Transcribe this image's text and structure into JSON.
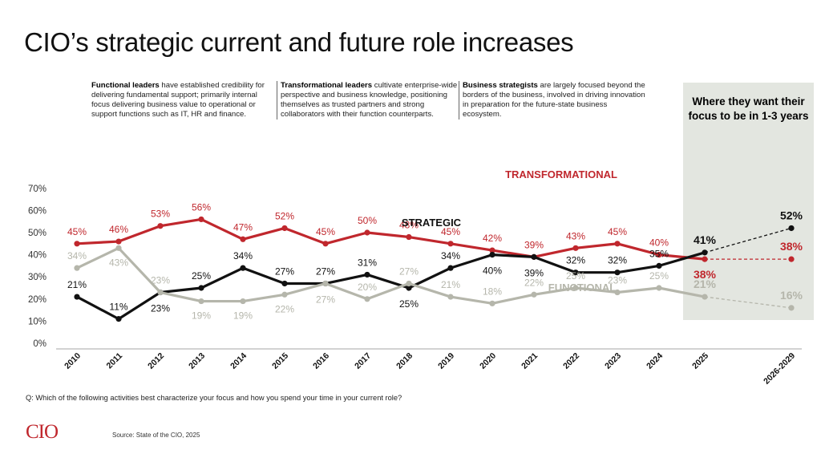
{
  "title": "CIO’s strategic current and future role increases",
  "descriptions": [
    {
      "bold": "Functional leaders",
      "text": " have established credibility for delivering fundamental support; primarily internal focus delivering business value to operational or support functions such as IT, HR and finance."
    },
    {
      "bold": "Transformational leaders",
      "text": " cultivate enterprise-wide perspective and business knowledge, positioning themselves as trusted partners and strong collaborators with their function counterparts."
    },
    {
      "bold": "Business strategists",
      "text": " are largely focused beyond the borders of the business, involved in driving innovation in preparation for the future-state business ecosystem."
    }
  ],
  "future_label": "Where they want their focus to be in 1-3 years",
  "question": "Q: Which of the following activities best characterize your focus and how you spend your time in your current role?",
  "source": "Source: State of the CIO, 2025",
  "logo": "CIO",
  "chart_data": {
    "type": "line",
    "categories": [
      "2010",
      "2011",
      "2012",
      "2013",
      "2014",
      "2015",
      "2016",
      "2017",
      "2018",
      "2019",
      "2020",
      "2021",
      "2022",
      "2023",
      "2024",
      "2025",
      "2026-2029"
    ],
    "yticks": [
      "0%",
      "10%",
      "20%",
      "30%",
      "40%",
      "50%",
      "60%",
      "70%"
    ],
    "ylim": [
      0,
      70
    ],
    "grid": false,
    "series": [
      {
        "name": "TRANSFORMATIONAL",
        "color": "#c0272d",
        "values": [
          45,
          46,
          53,
          56,
          47,
          52,
          45,
          50,
          48,
          45,
          42,
          39,
          43,
          45,
          40,
          38,
          38
        ],
        "labels": [
          "45%",
          "46%",
          "53%",
          "56%",
          "47%",
          "52%",
          "45%",
          "50%",
          "48%",
          "45%",
          "42%",
          "39%",
          "43%",
          "45%",
          "40%",
          "38%",
          "38%"
        ]
      },
      {
        "name": "STRATEGIC",
        "color": "#111111",
        "values": [
          21,
          11,
          23,
          25,
          34,
          27,
          27,
          31,
          25,
          34,
          40,
          39,
          32,
          32,
          35,
          41,
          52
        ],
        "labels": [
          "21%",
          "11%",
          "23%",
          "25%",
          "34%",
          "27%",
          "27%",
          "31%",
          "25%",
          "34%",
          "40%",
          "39%",
          "32%",
          "32%",
          "35%",
          "41%",
          "52%"
        ]
      },
      {
        "name": "FUNCTIONAL",
        "color": "#b5b6ab",
        "values": [
          34,
          43,
          23,
          19,
          19,
          22,
          27,
          20,
          27,
          21,
          18,
          22,
          25,
          23,
          25,
          21,
          16
        ],
        "labels": [
          "34%",
          "43%",
          "23%",
          "19%",
          "19%",
          "22%",
          "27%",
          "20%",
          "27%",
          "21%",
          "18%",
          "22%",
          "25%",
          "23%",
          "25%",
          "21%",
          "16%"
        ]
      }
    ]
  }
}
